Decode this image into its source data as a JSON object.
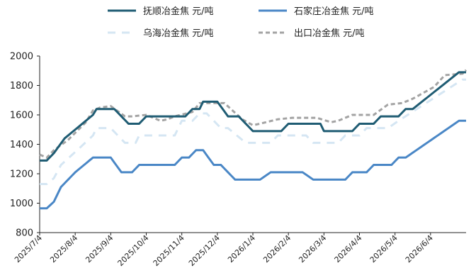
{
  "chart_data": {
    "type": "line",
    "title": "",
    "xlabel": "",
    "ylabel": "",
    "ylim": [
      800,
      2000
    ],
    "yticks": [
      800,
      1000,
      1200,
      1400,
      1600,
      1800,
      2000
    ],
    "x_tick_labels": [
      "2025/7/4",
      "2025/8/4",
      "2025/9/4",
      "2025/10/4",
      "2025/11/4",
      "2025/12/4",
      "2026/1/4",
      "2026/2/4",
      "2026/3/4",
      "2026/4/4",
      "2026/5/4",
      "2026/6/4"
    ],
    "x_tick_index": [
      0,
      10,
      20,
      30,
      40,
      50,
      60,
      70,
      80,
      90,
      100,
      110
    ],
    "x_points": 121,
    "legend_position": "top",
    "grid": false,
    "series": [
      {
        "name": "抚顺冶金焦 元/吨",
        "color": "#1f5c73",
        "dash": "solid",
        "keyframes": [
          [
            0,
            1290
          ],
          [
            2,
            1290
          ],
          [
            4,
            1340
          ],
          [
            7,
            1440
          ],
          [
            12,
            1540
          ],
          [
            15,
            1600
          ],
          [
            16,
            1640
          ],
          [
            21,
            1640
          ],
          [
            25,
            1540
          ],
          [
            28,
            1540
          ],
          [
            30,
            1590
          ],
          [
            41,
            1590
          ],
          [
            43,
            1640
          ],
          [
            45,
            1640
          ],
          [
            46,
            1690
          ],
          [
            50,
            1690
          ],
          [
            53,
            1590
          ],
          [
            56,
            1590
          ],
          [
            60,
            1490
          ],
          [
            68,
            1490
          ],
          [
            70,
            1540
          ],
          [
            79,
            1540
          ],
          [
            80,
            1490
          ],
          [
            88,
            1490
          ],
          [
            90,
            1540
          ],
          [
            94,
            1540
          ],
          [
            96,
            1590
          ],
          [
            101,
            1590
          ],
          [
            103,
            1640
          ],
          [
            105,
            1640
          ],
          [
            118,
            1890
          ],
          [
            121,
            1890
          ]
        ]
      },
      {
        "name": "石家庄冶金焦 元/吨",
        "color": "#4a87c6",
        "dash": "solid",
        "keyframes": [
          [
            0,
            965
          ],
          [
            2,
            965
          ],
          [
            4,
            1010
          ],
          [
            6,
            1110
          ],
          [
            10,
            1210
          ],
          [
            15,
            1310
          ],
          [
            20,
            1310
          ],
          [
            23,
            1210
          ],
          [
            26,
            1210
          ],
          [
            28,
            1260
          ],
          [
            38,
            1260
          ],
          [
            40,
            1310
          ],
          [
            42,
            1310
          ],
          [
            44,
            1360
          ],
          [
            46,
            1360
          ],
          [
            49,
            1260
          ],
          [
            51,
            1260
          ],
          [
            55,
            1160
          ],
          [
            62,
            1160
          ],
          [
            65,
            1210
          ],
          [
            74,
            1210
          ],
          [
            77,
            1160
          ],
          [
            86,
            1160
          ],
          [
            88,
            1210
          ],
          [
            92,
            1210
          ],
          [
            94,
            1260
          ],
          [
            99,
            1260
          ],
          [
            101,
            1310
          ],
          [
            103,
            1310
          ],
          [
            118,
            1560
          ],
          [
            121,
            1560
          ]
        ]
      },
      {
        "name": "乌海冶金焦 元/吨",
        "color": "#d5e6f3",
        "dash": "long",
        "keyframes": [
          [
            0,
            1130
          ],
          [
            2,
            1130
          ],
          [
            4,
            1170
          ],
          [
            6,
            1260
          ],
          [
            11,
            1370
          ],
          [
            15,
            1460
          ],
          [
            16,
            1510
          ],
          [
            20,
            1510
          ],
          [
            24,
            1410
          ],
          [
            27,
            1410
          ],
          [
            28,
            1460
          ],
          [
            38,
            1460
          ],
          [
            40,
            1560
          ],
          [
            43,
            1560
          ],
          [
            45,
            1610
          ],
          [
            47,
            1610
          ],
          [
            51,
            1510
          ],
          [
            53,
            1510
          ],
          [
            58,
            1410
          ],
          [
            65,
            1410
          ],
          [
            67,
            1460
          ],
          [
            75,
            1460
          ],
          [
            77,
            1410
          ],
          [
            84,
            1410
          ],
          [
            86,
            1460
          ],
          [
            90,
            1460
          ],
          [
            92,
            1510
          ],
          [
            98,
            1510
          ],
          [
            101,
            1560
          ],
          [
            119,
            1840
          ],
          [
            121,
            1840
          ]
        ]
      },
      {
        "name": "出口冶金焦 元/吨",
        "color": "#a3a3a3",
        "dash": "short",
        "keyframes": [
          [
            0,
            1330
          ],
          [
            2,
            1310
          ],
          [
            4,
            1360
          ],
          [
            8,
            1430
          ],
          [
            13,
            1550
          ],
          [
            15,
            1630
          ],
          [
            17,
            1650
          ],
          [
            20,
            1660
          ],
          [
            24,
            1590
          ],
          [
            26,
            1590
          ],
          [
            30,
            1600
          ],
          [
            34,
            1560
          ],
          [
            36,
            1570
          ],
          [
            38,
            1590
          ],
          [
            43,
            1620
          ],
          [
            45,
            1680
          ],
          [
            52,
            1680
          ],
          [
            57,
            1570
          ],
          [
            60,
            1530
          ],
          [
            62,
            1540
          ],
          [
            67,
            1570
          ],
          [
            71,
            1580
          ],
          [
            78,
            1580
          ],
          [
            82,
            1550
          ],
          [
            84,
            1560
          ],
          [
            88,
            1600
          ],
          [
            94,
            1600
          ],
          [
            98,
            1670
          ],
          [
            102,
            1680
          ],
          [
            105,
            1710
          ],
          [
            111,
            1790
          ],
          [
            114,
            1870
          ],
          [
            119,
            1880
          ],
          [
            121,
            1930
          ]
        ]
      }
    ]
  }
}
